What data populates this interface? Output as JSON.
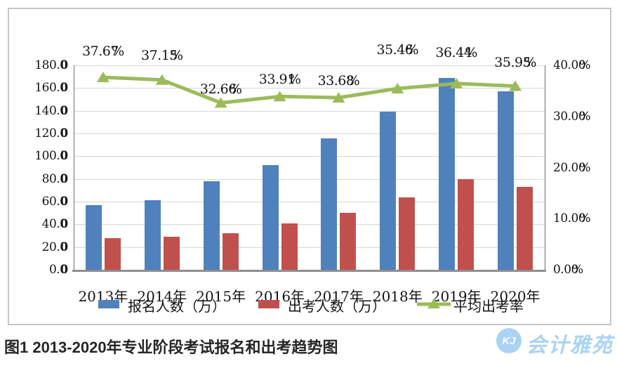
{
  "chart_data": {
    "type": "bar+line combo",
    "title": "",
    "categories": [
      "2013年",
      "2014年",
      "2015年",
      "2016年",
      "2017年",
      "2018年",
      "2019年",
      "2020年"
    ],
    "series": [
      {
        "name": "报名人数（万）",
        "type": "bar",
        "color": "#4f81bd",
        "axis": "left",
        "values": [
          57,
          61,
          78,
          92,
          116,
          139,
          169,
          157
        ]
      },
      {
        "name": "出考人数（万）",
        "type": "bar",
        "color": "#c0504d",
        "axis": "left",
        "values": [
          28,
          29,
          32,
          41,
          50,
          64,
          80,
          73
        ]
      },
      {
        "name": "平均出考率",
        "type": "line",
        "color": "#9bbb59",
        "axis": "right",
        "values": [
          37.67,
          37.15,
          32.66,
          33.91,
          33.68,
          35.46,
          36.44,
          35.95
        ],
        "labels": [
          "37.67%",
          "37.15%",
          "32.66%",
          "33.91%",
          "33.68%",
          "35.46%",
          "36.44%",
          "35.95%"
        ]
      }
    ],
    "left_axis": {
      "min": 0,
      "max": 180,
      "step": 20,
      "tick_labels": [
        "0.00",
        "20.00",
        "40.00",
        "60.00",
        "80.00",
        "100.00",
        "120.00",
        "140.00",
        "160.00",
        "180.00"
      ]
    },
    "right_axis": {
      "min": 0,
      "max": 40,
      "step": 10,
      "tick_labels": [
        "0.00%",
        "10.00%",
        "20.00%",
        "30.00%",
        "40.00%"
      ]
    },
    "grid": true,
    "legend_position": "bottom"
  },
  "caption": "图1  2013-2020年专业阶段考试报名和出考趋势图",
  "watermark": {
    "logo_text": "KJ",
    "text": "会计雅苑",
    "color": "#a9d3f5"
  }
}
